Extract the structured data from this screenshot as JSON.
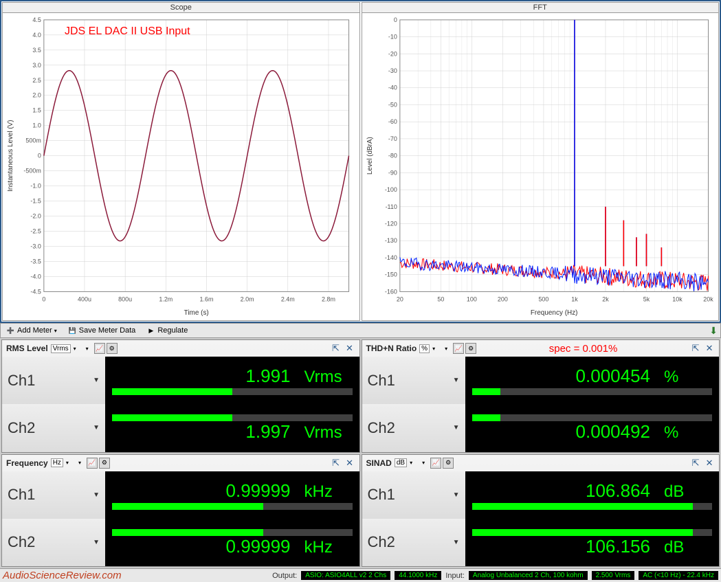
{
  "scope": {
    "title": "Scope",
    "annotation": "JDS EL DAC II USB Input",
    "xlabel": "Time (s)",
    "ylabel": "Instantaneous Level (V)",
    "xticks": [
      "0",
      "400u",
      "800u",
      "1.2m",
      "1.6m",
      "2.0m",
      "2.4m",
      "2.8m"
    ],
    "yticks": [
      "-4.5",
      "-4.0",
      "-3.5",
      "-3.0",
      "-2.5",
      "-2.0",
      "-1.5",
      "-1.0",
      "-500m",
      "0",
      "500m",
      "1.0",
      "1.5",
      "2.0",
      "2.5",
      "3.0",
      "3.5",
      "4.0",
      "4.5"
    ],
    "xlim": [
      0,
      3.0
    ],
    "ylim": [
      -4.5,
      4.5
    ],
    "line_color": "#8b1a3a",
    "amplitude": 2.82,
    "period_ms": 1.0,
    "grid_color": "#d0d0d0",
    "bg_color": "#ffffff"
  },
  "fft": {
    "title": "FFT",
    "xlabel": "Frequency (Hz)",
    "ylabel": "Level (dBrA)",
    "xticks": [
      "20",
      "50",
      "100",
      "200",
      "500",
      "1k",
      "2k",
      "5k",
      "10k",
      "20k"
    ],
    "yticks": [
      "-160",
      "-150",
      "-140",
      "-130",
      "-120",
      "-110",
      "-100",
      "-90",
      "-80",
      "-70",
      "-60",
      "-50",
      "-40",
      "-30",
      "-20",
      "-10",
      "0"
    ],
    "xlim_log": [
      20,
      20000
    ],
    "ylim": [
      -160,
      0
    ],
    "series_colors": [
      "#ff0000",
      "#0020ff"
    ],
    "noise_floor": -145,
    "fundamental_hz": 1000,
    "fundamental_db": 0,
    "harmonics": [
      {
        "hz": 2000,
        "db": -110
      },
      {
        "hz": 3000,
        "db": -118
      },
      {
        "hz": 4000,
        "db": -128
      },
      {
        "hz": 5000,
        "db": -126
      },
      {
        "hz": 7000,
        "db": -134
      }
    ],
    "grid_color": "#d0d0d0",
    "bg_color": "#ffffff"
  },
  "toolbar": {
    "add_meter": "Add Meter",
    "save_meter": "Save Meter Data",
    "regulate": "Regulate"
  },
  "meters": {
    "rms": {
      "title": "RMS Level",
      "unit_sel": "Vrms",
      "ch1_val": "1.991",
      "ch1_unit": "Vrms",
      "ch1_bar": 0.5,
      "ch2_val": "1.997",
      "ch2_unit": "Vrms",
      "ch2_bar": 0.5
    },
    "thdn": {
      "title": "THD+N Ratio",
      "unit_sel": "%",
      "spec": "spec = 0.001%",
      "ch1_val": "0.000454",
      "ch1_unit": "%",
      "ch1_bar": 0.12,
      "ch2_val": "0.000492",
      "ch2_unit": "%",
      "ch2_bar": 0.12
    },
    "freq": {
      "title": "Frequency",
      "unit_sel": "Hz",
      "ch1_val": "0.99999",
      "ch1_unit": "kHz",
      "ch1_bar": 0.63,
      "ch2_val": "0.99999",
      "ch2_unit": "kHz",
      "ch2_bar": 0.63
    },
    "sinad": {
      "title": "SINAD",
      "unit_sel": "dB",
      "ch1_val": "106.864",
      "ch1_unit": "dB",
      "ch1_bar": 0.92,
      "ch2_val": "106.156",
      "ch2_unit": "dB",
      "ch2_bar": 0.92
    }
  },
  "labels": {
    "ch1": "Ch1",
    "ch2": "Ch2"
  },
  "status": {
    "watermark": "AudioScienceReview.com",
    "output_label": "Output:",
    "output_val": "ASIO: ASIO4ALL v2 2 Chs",
    "sample_rate": "44.1000 kHz",
    "input_label": "Input:",
    "input_val": "Analog Unbalanced 2 Ch, 100 kohm",
    "range": "2.500 Vrms",
    "filter": "AC (<10 Hz) - 22.4 kHz"
  },
  "colors": {
    "green": "#00ff00",
    "panel_border": "#2b5a8c"
  }
}
